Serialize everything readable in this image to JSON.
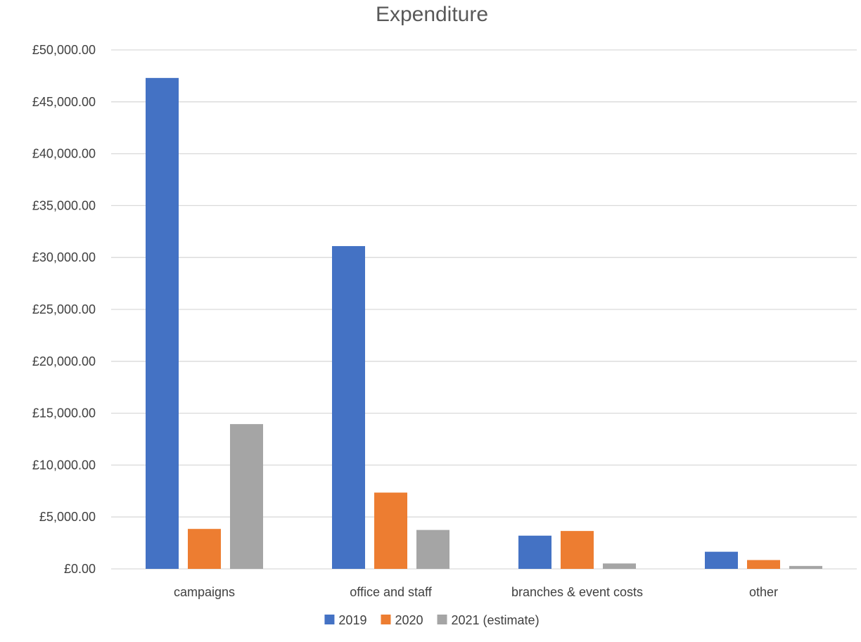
{
  "chart_data": {
    "type": "bar",
    "title": "Expenditure",
    "xlabel": "",
    "ylabel": "",
    "categories": [
      "campaigns",
      "office and staff",
      "branches & event costs",
      "other"
    ],
    "series": [
      {
        "name": "2019",
        "color": "#4472c4",
        "values": [
          47300,
          31100,
          3200,
          1650
        ]
      },
      {
        "name": "2020",
        "color": "#ed7d31",
        "values": [
          3850,
          7350,
          3650,
          850
        ]
      },
      {
        "name": "2021 (estimate)",
        "color": "#a5a5a5",
        "values": [
          13950,
          3750,
          520,
          280
        ]
      }
    ],
    "ylim": [
      0,
      50000
    ],
    "yticks": [
      0,
      5000,
      10000,
      15000,
      20000,
      25000,
      30000,
      35000,
      40000,
      45000,
      50000
    ],
    "ytick_labels": [
      "£0.00",
      "£5,000.00",
      "£10,000.00",
      "£15,000.00",
      "£20,000.00",
      "£25,000.00",
      "£30,000.00",
      "£35,000.00",
      "£40,000.00",
      "£45,000.00",
      "£50,000.00"
    ],
    "grid": true,
    "legend_position": "bottom"
  }
}
